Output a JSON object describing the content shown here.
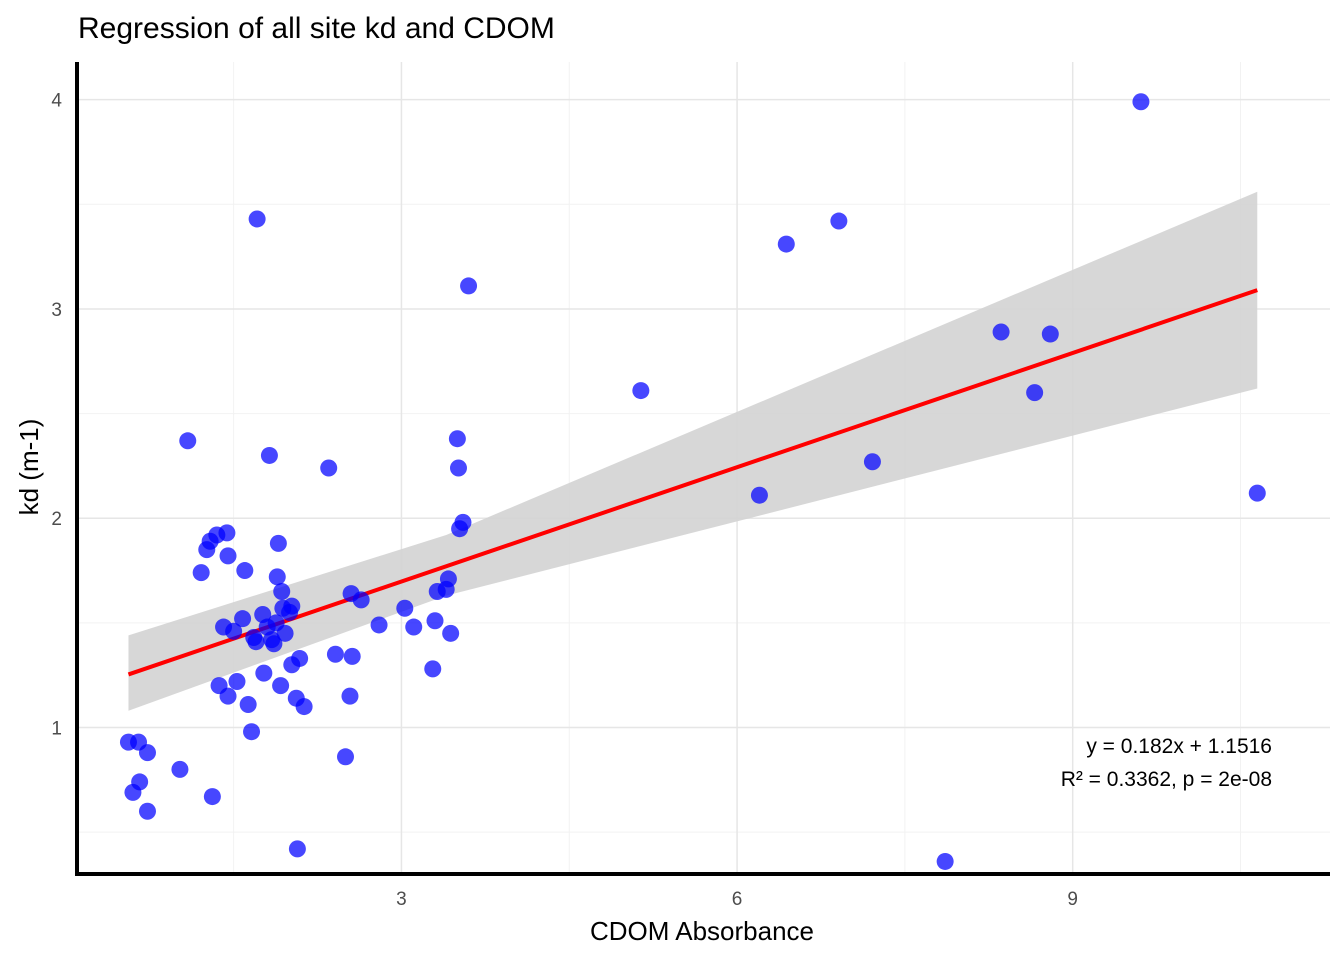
{
  "chart_data": {
    "type": "scatter",
    "title": "Regression of all site kd and CDOM",
    "xlabel": "CDOM Absorbance",
    "ylabel": "kd (m-1)",
    "xlim": [
      0.1,
      11.3
    ],
    "ylim": [
      0.3,
      4.18
    ],
    "x_ticks": [
      3,
      6,
      9
    ],
    "y_ticks": [
      1,
      2,
      3,
      4
    ],
    "grid": true,
    "point_color": "#0000ff",
    "line_color": "#ff0000",
    "band_color": "#d3d3d3",
    "points": [
      {
        "x": 0.56,
        "y": 0.93
      },
      {
        "x": 0.65,
        "y": 0.93
      },
      {
        "x": 0.6,
        "y": 0.69
      },
      {
        "x": 0.66,
        "y": 0.74
      },
      {
        "x": 0.73,
        "y": 0.88
      },
      {
        "x": 0.73,
        "y": 0.6
      },
      {
        "x": 1.02,
        "y": 0.8
      },
      {
        "x": 1.09,
        "y": 2.37
      },
      {
        "x": 1.21,
        "y": 1.74
      },
      {
        "x": 1.26,
        "y": 1.85
      },
      {
        "x": 1.29,
        "y": 1.89
      },
      {
        "x": 1.31,
        "y": 0.67
      },
      {
        "x": 1.35,
        "y": 1.92
      },
      {
        "x": 1.37,
        "y": 1.2
      },
      {
        "x": 1.41,
        "y": 1.48
      },
      {
        "x": 1.44,
        "y": 1.93
      },
      {
        "x": 1.45,
        "y": 1.82
      },
      {
        "x": 1.45,
        "y": 1.15
      },
      {
        "x": 1.5,
        "y": 1.46
      },
      {
        "x": 1.53,
        "y": 1.22
      },
      {
        "x": 1.58,
        "y": 1.52
      },
      {
        "x": 1.6,
        "y": 1.75
      },
      {
        "x": 1.63,
        "y": 1.11
      },
      {
        "x": 1.66,
        "y": 0.98
      },
      {
        "x": 1.68,
        "y": 1.43
      },
      {
        "x": 1.7,
        "y": 1.41
      },
      {
        "x": 1.71,
        "y": 3.43
      },
      {
        "x": 1.76,
        "y": 1.54
      },
      {
        "x": 1.77,
        "y": 1.26
      },
      {
        "x": 1.8,
        "y": 1.48
      },
      {
        "x": 1.82,
        "y": 2.3
      },
      {
        "x": 1.84,
        "y": 1.42
      },
      {
        "x": 1.86,
        "y": 1.4
      },
      {
        "x": 1.88,
        "y": 1.5
      },
      {
        "x": 1.89,
        "y": 1.72
      },
      {
        "x": 1.9,
        "y": 1.88
      },
      {
        "x": 1.92,
        "y": 1.2
      },
      {
        "x": 1.93,
        "y": 1.65
      },
      {
        "x": 1.94,
        "y": 1.57
      },
      {
        "x": 1.96,
        "y": 1.45
      },
      {
        "x": 2.0,
        "y": 1.55
      },
      {
        "x": 2.02,
        "y": 1.58
      },
      {
        "x": 2.02,
        "y": 1.3
      },
      {
        "x": 2.06,
        "y": 1.14
      },
      {
        "x": 2.07,
        "y": 0.42
      },
      {
        "x": 2.09,
        "y": 1.33
      },
      {
        "x": 2.13,
        "y": 1.1
      },
      {
        "x": 2.35,
        "y": 2.24
      },
      {
        "x": 2.41,
        "y": 1.35
      },
      {
        "x": 2.5,
        "y": 0.86
      },
      {
        "x": 2.54,
        "y": 1.15
      },
      {
        "x": 2.55,
        "y": 1.64
      },
      {
        "x": 2.56,
        "y": 1.34
      },
      {
        "x": 2.64,
        "y": 1.61
      },
      {
        "x": 2.8,
        "y": 1.49
      },
      {
        "x": 3.03,
        "y": 1.57
      },
      {
        "x": 3.11,
        "y": 1.48
      },
      {
        "x": 3.28,
        "y": 1.28
      },
      {
        "x": 3.3,
        "y": 1.51
      },
      {
        "x": 3.32,
        "y": 1.65
      },
      {
        "x": 3.4,
        "y": 1.66
      },
      {
        "x": 3.42,
        "y": 1.71
      },
      {
        "x": 3.44,
        "y": 1.45
      },
      {
        "x": 3.5,
        "y": 2.38
      },
      {
        "x": 3.51,
        "y": 2.24
      },
      {
        "x": 3.52,
        "y": 1.95
      },
      {
        "x": 3.55,
        "y": 1.98
      },
      {
        "x": 3.6,
        "y": 3.11
      },
      {
        "x": 5.14,
        "y": 2.61
      },
      {
        "x": 6.2,
        "y": 2.11
      },
      {
        "x": 6.44,
        "y": 3.31
      },
      {
        "x": 6.91,
        "y": 3.42
      },
      {
        "x": 7.21,
        "y": 2.27
      },
      {
        "x": 7.86,
        "y": 0.36
      },
      {
        "x": 8.36,
        "y": 2.89
      },
      {
        "x": 8.66,
        "y": 2.6
      },
      {
        "x": 8.8,
        "y": 2.88
      },
      {
        "x": 9.61,
        "y": 3.99
      },
      {
        "x": 10.65,
        "y": 2.12
      }
    ],
    "regression": {
      "slope": 0.182,
      "intercept": 1.1516,
      "x_range": [
        0.56,
        10.65
      ],
      "ci_lower": [
        {
          "x": 0.56,
          "y": 1.08
        },
        {
          "x": 3.4,
          "y": 1.63
        },
        {
          "x": 10.65,
          "y": 2.62
        }
      ],
      "ci_upper": [
        {
          "x": 0.56,
          "y": 1.44
        },
        {
          "x": 3.4,
          "y": 1.92
        },
        {
          "x": 10.65,
          "y": 3.56
        }
      ]
    },
    "annotations": {
      "equation": "y = 0.182x + 1.1516",
      "stats": "R² = 0.3362, p = 2e-08"
    }
  }
}
